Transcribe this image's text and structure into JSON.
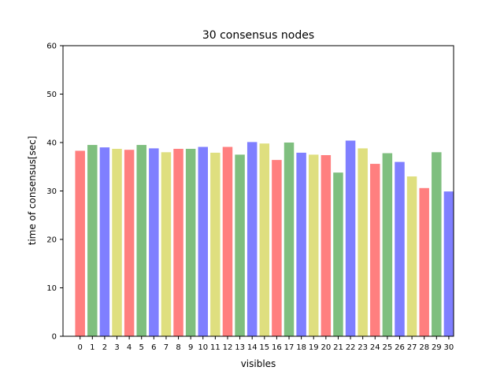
{
  "chart_data": {
    "type": "bar",
    "title": "30 consensus nodes",
    "xlabel": "visibles",
    "ylabel": "time of consensus[sec]",
    "ylim": [
      0,
      60
    ],
    "yticks": [
      0,
      10,
      20,
      30,
      40,
      50,
      60
    ],
    "grid": false,
    "legend": "none",
    "categories": [
      "0",
      "1",
      "2",
      "3",
      "4",
      "5",
      "6",
      "7",
      "8",
      "9",
      "10",
      "11",
      "12",
      "13",
      "14",
      "15",
      "16",
      "17",
      "18",
      "19",
      "20",
      "21",
      "22",
      "23",
      "24",
      "25",
      "26",
      "27",
      "28",
      "29",
      "30"
    ],
    "values": [
      38.3,
      39.5,
      39.0,
      38.7,
      38.5,
      39.5,
      38.8,
      38.0,
      38.7,
      38.7,
      39.1,
      37.9,
      39.1,
      37.5,
      40.1,
      39.8,
      36.4,
      40.0,
      37.9,
      37.5,
      37.4,
      33.8,
      40.4,
      38.8,
      35.6,
      37.8,
      36.0,
      33.0,
      30.6,
      38.0,
      29.9
    ],
    "bar_colors": [
      "#ff7f7f",
      "#7fbf7f",
      "#7f7fff",
      "#dfdf7f"
    ]
  }
}
